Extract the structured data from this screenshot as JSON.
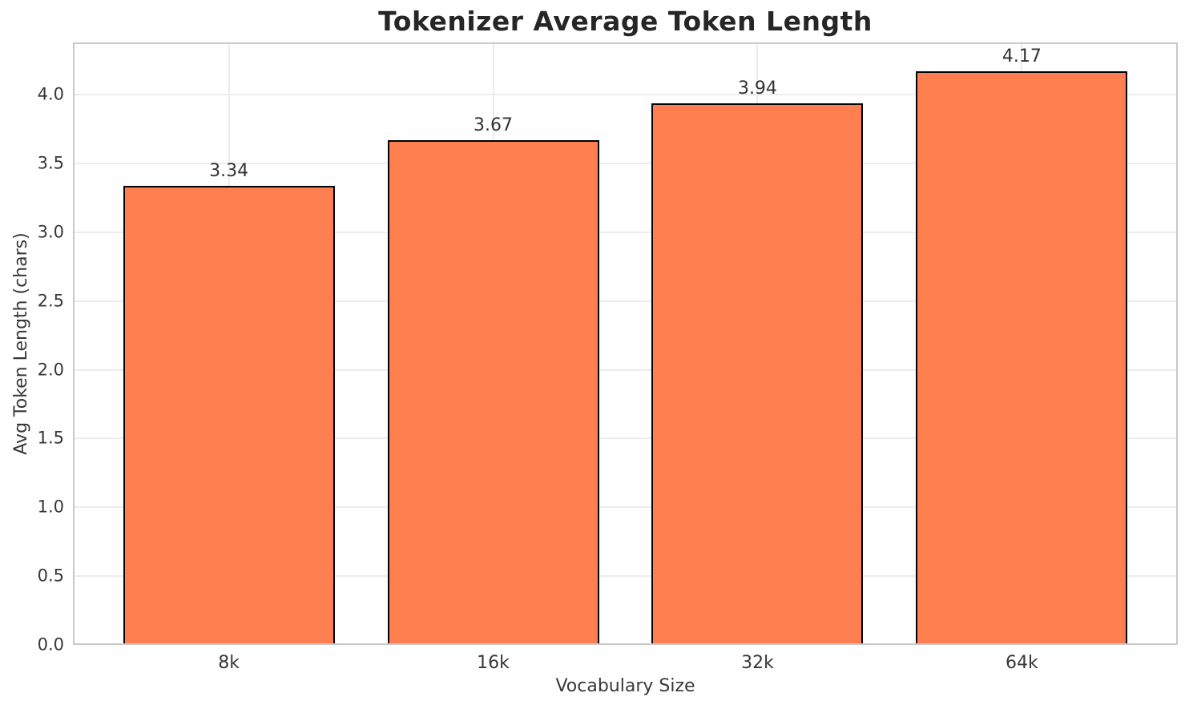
{
  "chart_data": {
    "type": "bar",
    "title": "Tokenizer Average Token Length",
    "xlabel": "Vocabulary Size",
    "ylabel": "Avg Token Length (chars)",
    "categories": [
      "8k",
      "16k",
      "32k",
      "64k"
    ],
    "values": [
      3.34,
      3.67,
      3.94,
      4.17
    ],
    "value_labels": [
      "3.34",
      "3.67",
      "3.94",
      "4.17"
    ],
    "ytick_labels": [
      "0.0",
      "0.5",
      "1.0",
      "1.5",
      "2.0",
      "2.5",
      "3.0",
      "3.5",
      "4.0"
    ],
    "ylim": [
      0,
      4.38
    ],
    "grid": "both",
    "legend": "none",
    "colors": {
      "bar_fill": "#FF7F50",
      "bar_edge": "#000000",
      "gridline": "#ececec",
      "spine": "#c9c9c9",
      "title_text": "#262626",
      "tick_text": "#383838",
      "background": "#ffffff"
    }
  }
}
